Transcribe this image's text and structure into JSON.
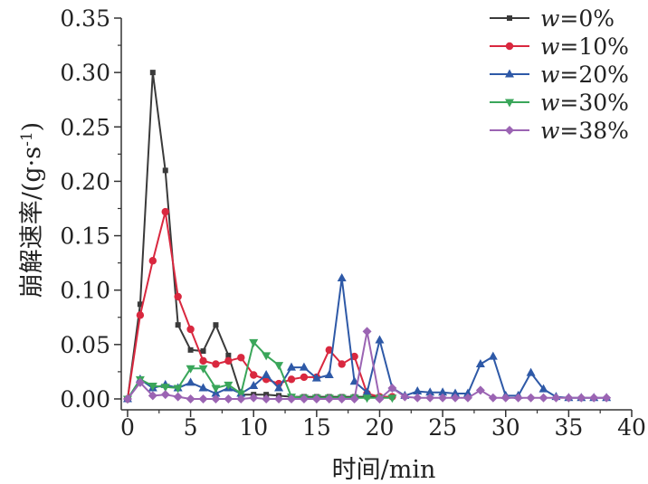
{
  "chart_data": {
    "type": "line",
    "title": "",
    "xlabel": "时间/min",
    "ylabel_main": "崩解速率/(g·s",
    "ylabel_sup": "-1",
    "ylabel_close": ")",
    "xlim": [
      -0.5,
      40
    ],
    "ylim": [
      -0.01,
      0.35
    ],
    "x_ticks": [
      0,
      5,
      10,
      15,
      20,
      25,
      30,
      35,
      40
    ],
    "x_tick_labels": [
      "0",
      "5",
      "10",
      "15",
      "20",
      "25",
      "30",
      "35",
      "40"
    ],
    "y_ticks": [
      0.0,
      0.05,
      0.1,
      0.15,
      0.2,
      0.25,
      0.3,
      0.35
    ],
    "y_tick_labels": [
      "0.00",
      "0.05",
      "0.10",
      "0.15",
      "0.20",
      "0.25",
      "0.30",
      "0.35"
    ],
    "grid": false,
    "legend_position": "top-right",
    "series": [
      {
        "name": "w=0%",
        "legend_var": "w",
        "legend_rest": "=0%",
        "color": "#3a3a3a",
        "marker": "square",
        "x": [
          0,
          1,
          2,
          3,
          4,
          5,
          6,
          7,
          8,
          9,
          10,
          11,
          12,
          13,
          14,
          15,
          16,
          17,
          18,
          19,
          20,
          21
        ],
        "y": [
          0.0,
          0.087,
          0.3,
          0.21,
          0.068,
          0.045,
          0.044,
          0.068,
          0.04,
          0.004,
          0.004,
          0.004,
          0.003,
          0.002,
          0.002,
          0.002,
          0.002,
          0.002,
          0.002,
          0.002,
          0.002,
          0.002
        ]
      },
      {
        "name": "w=10%",
        "legend_var": "w",
        "legend_rest": "=10%",
        "color": "#d9283f",
        "marker": "circle",
        "x": [
          0,
          1,
          2,
          3,
          4,
          5,
          6,
          7,
          8,
          9,
          10,
          11,
          12,
          13,
          14,
          15,
          16,
          17,
          18,
          19,
          20,
          21
        ],
        "y": [
          0.0,
          0.077,
          0.127,
          0.172,
          0.094,
          0.064,
          0.035,
          0.032,
          0.035,
          0.038,
          0.022,
          0.018,
          0.014,
          0.018,
          0.02,
          0.02,
          0.045,
          0.032,
          0.039,
          0.005,
          0.002,
          0.002
        ]
      },
      {
        "name": "w=20%",
        "legend_var": "w",
        "legend_rest": "=20%",
        "color": "#2e59a7",
        "marker": "triangle-up",
        "x": [
          0,
          1,
          2,
          3,
          4,
          5,
          6,
          7,
          8,
          9,
          10,
          11,
          12,
          13,
          14,
          15,
          16,
          17,
          18,
          19,
          20,
          21,
          22,
          23,
          24,
          25,
          26,
          27,
          28,
          29,
          30,
          31,
          32,
          33,
          34,
          35,
          36,
          37,
          38
        ],
        "y": [
          0.0,
          0.018,
          0.01,
          0.013,
          0.01,
          0.015,
          0.01,
          0.005,
          0.01,
          0.005,
          0.012,
          0.022,
          0.01,
          0.029,
          0.029,
          0.019,
          0.022,
          0.111,
          0.016,
          0.006,
          0.054,
          0.01,
          0.003,
          0.007,
          0.006,
          0.006,
          0.005,
          0.005,
          0.032,
          0.039,
          0.003,
          0.003,
          0.024,
          0.009,
          0.002,
          0.001,
          0.001,
          0.001,
          0.001
        ]
      },
      {
        "name": "w=30%",
        "legend_var": "w",
        "legend_rest": "=30%",
        "color": "#3aa65a",
        "marker": "triangle-down",
        "x": [
          0,
          1,
          2,
          3,
          4,
          5,
          6,
          7,
          8,
          9,
          10,
          11,
          12,
          13,
          14,
          15,
          16,
          17,
          18,
          19,
          20,
          21
        ],
        "y": [
          0.0,
          0.018,
          0.012,
          0.011,
          0.01,
          0.028,
          0.028,
          0.01,
          0.013,
          0.005,
          0.052,
          0.04,
          0.031,
          0.002,
          0.001,
          0.001,
          0.001,
          0.001,
          0.001,
          0.001,
          0.001,
          0.001
        ]
      },
      {
        "name": "w=38%",
        "legend_var": "w",
        "legend_rest": "=38%",
        "color": "#9b64b3",
        "marker": "diamond",
        "x": [
          0,
          1,
          2,
          3,
          4,
          5,
          6,
          7,
          8,
          9,
          10,
          11,
          12,
          13,
          14,
          15,
          16,
          17,
          18,
          19,
          20,
          21,
          22,
          23,
          24,
          25,
          26,
          27,
          28,
          29,
          30,
          31,
          32,
          33,
          34,
          35,
          36,
          37,
          38
        ],
        "y": [
          0.0,
          0.015,
          0.003,
          0.004,
          0.002,
          0.0,
          0.0,
          0.0,
          0.0,
          0.0,
          0.001,
          0.0,
          0.0,
          0.0,
          0.0,
          0.0,
          0.0,
          0.0,
          0.0,
          0.062,
          0.0,
          0.01,
          0.002,
          0.001,
          0.001,
          0.001,
          0.001,
          0.001,
          0.008,
          0.001,
          0.001,
          0.001,
          0.001,
          0.001,
          0.001,
          0.001,
          0.001,
          0.001,
          0.001
        ]
      }
    ]
  }
}
